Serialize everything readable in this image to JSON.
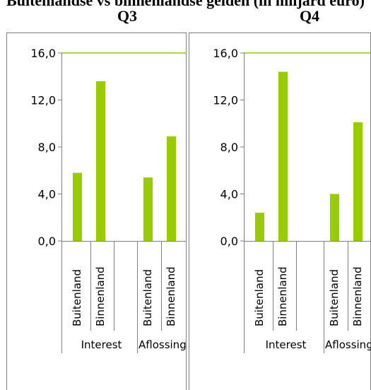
{
  "page": {
    "title_fragment": "Buitenlandse vs binnenlandse gelden (in miljard euro)"
  },
  "colors": {
    "bar": "#99cc00",
    "axis": "#808080",
    "border": "#808080",
    "topline": "#99cc00"
  },
  "chart_data": [
    {
      "type": "bar",
      "title": "Q3",
      "ylim": [
        0,
        16
      ],
      "yticks": [
        "16,0",
        "12,0",
        "8,0",
        "4,0",
        "0,0"
      ],
      "groups": [
        "Interest",
        "Aflossing"
      ],
      "categories": [
        "Buitenland",
        "Binnenland",
        "Buitenland",
        "Binnenland"
      ],
      "values": [
        5.8,
        13.6,
        5.4,
        8.9
      ]
    },
    {
      "type": "bar",
      "title": "Q4",
      "ylim": [
        0,
        16
      ],
      "yticks": [
        "16,0",
        "12,0",
        "8,0",
        "4,0",
        "0,0"
      ],
      "groups": [
        "Interest",
        "Aflossing"
      ],
      "categories": [
        "Buitenland",
        "Binnenland",
        "Buitenland",
        "Binnenland"
      ],
      "values": [
        2.4,
        14.4,
        4.0,
        10.1
      ]
    }
  ]
}
